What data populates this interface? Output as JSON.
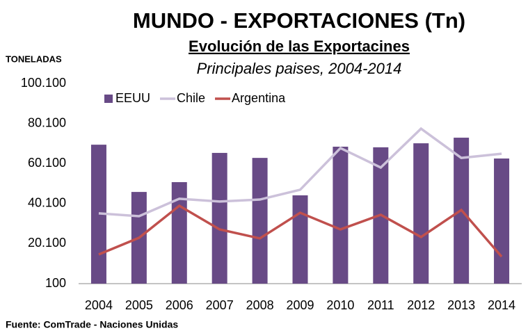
{
  "chart_data": {
    "type": "bar",
    "title": "MUNDO - EXPORTACIONES (Tn)",
    "subtitle": "Evolución de las Exportacines",
    "subtitle2": "Principales paises, 2004-2014",
    "y_label": "TONELADAS",
    "source": "Fuente: ComTrade - Naciones Unidas",
    "categories": [
      "2004",
      "2005",
      "2006",
      "2007",
      "2008",
      "2009",
      "2010",
      "2011",
      "2012",
      "2013",
      "2014"
    ],
    "series": [
      {
        "name": "EEUU",
        "type": "bar",
        "color": "#684a86",
        "values": [
          69500,
          45900,
          50800,
          65400,
          62900,
          44200,
          68500,
          68200,
          70200,
          73000,
          62600
        ]
      },
      {
        "name": "Chile",
        "type": "line",
        "color": "#ccc1da",
        "values": [
          35200,
          33800,
          42500,
          41100,
          42100,
          47000,
          67800,
          58100,
          77500,
          62900,
          65000
        ]
      },
      {
        "name": "Argentina",
        "type": "line",
        "color": "#c0504d",
        "values": [
          14700,
          23000,
          39000,
          27200,
          22700,
          35500,
          27200,
          34500,
          23400,
          36900,
          13600
        ]
      }
    ],
    "ylim": [
      100,
      100100
    ],
    "yticks": [
      100,
      {
        "value": 20100,
        "label": "20.100"
      },
      {
        "value": 40100,
        "label": "40.100"
      },
      {
        "value": 60100,
        "label": "60.100"
      },
      {
        "value": 80100,
        "label": "80.100"
      },
      {
        "value": 100100,
        "label": "100.100"
      }
    ],
    "grid": false,
    "legend": "top"
  }
}
